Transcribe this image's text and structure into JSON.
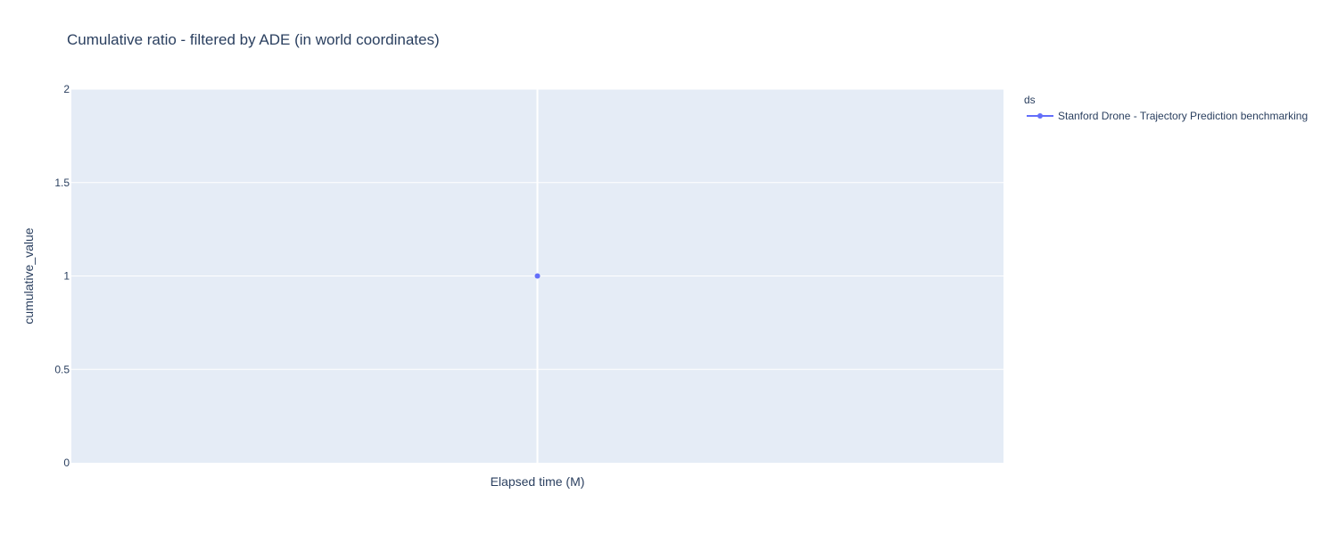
{
  "chart_data": {
    "type": "line",
    "title": "Cumulative ratio - filtered by ADE (in world coordinates)",
    "xlabel": "Elapsed time (M)",
    "ylabel": "cumulative_value",
    "ylim": [
      0,
      2
    ],
    "yticks": [
      "0",
      "0.5",
      "1",
      "1.5",
      "2"
    ],
    "yticks_values": [
      0,
      0.5,
      1,
      1.5,
      2
    ],
    "legend_title": "ds",
    "legend_position": "right",
    "grid": true,
    "colors": {
      "plot_bg": "#E5ECF6",
      "grid": "#ffffff",
      "text": "#2a3f5f",
      "series": "#636efa"
    },
    "series": [
      {
        "name": "Stanford Drone - Trajectory Prediction benchmarking",
        "points": [
          {
            "x": "",
            "y": 1
          }
        ]
      }
    ]
  }
}
